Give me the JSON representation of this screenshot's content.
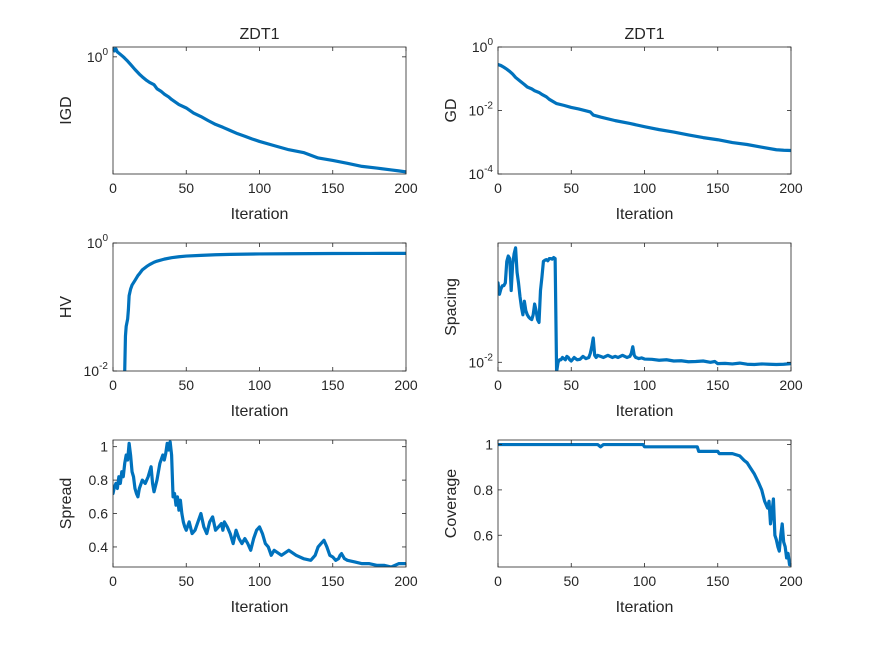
{
  "figure": {
    "background": "#ffffff",
    "line_color": "#0072BD",
    "axis_color": "#262626"
  },
  "chart_data": [
    {
      "id": "igd",
      "type": "line",
      "title": "ZDT1",
      "xlabel": "Iteration",
      "ylabel": "IGD",
      "yscale": "log",
      "xlim": [
        0,
        200
      ],
      "ylim": [
        0.012,
        1.45
      ],
      "xticks": [
        0,
        50,
        100,
        150,
        200
      ],
      "xtick_labels": [
        "0",
        "50",
        "100",
        "150",
        "200"
      ],
      "yticks": [
        {
          "value": 1,
          "base": "10",
          "exp": "0"
        }
      ],
      "series": [
        {
          "name": "IGD",
          "x": [
            0,
            1,
            2,
            3,
            4,
            5,
            6,
            7,
            8,
            10,
            12,
            15,
            18,
            20,
            23,
            25,
            28,
            30,
            33,
            35,
            38,
            40,
            45,
            50,
            55,
            60,
            65,
            70,
            75,
            80,
            85,
            90,
            95,
            100,
            110,
            120,
            130,
            140,
            150,
            160,
            170,
            180,
            190,
            195,
            200
          ],
          "y": [
            1.4,
            1.25,
            1.35,
            1.2,
            1.15,
            1.1,
            1.05,
            1.0,
            0.95,
            0.85,
            0.75,
            0.62,
            0.52,
            0.47,
            0.41,
            0.38,
            0.35,
            0.3,
            0.27,
            0.245,
            0.22,
            0.2,
            0.165,
            0.145,
            0.12,
            0.105,
            0.09,
            0.078,
            0.07,
            0.062,
            0.055,
            0.05,
            0.045,
            0.041,
            0.035,
            0.03,
            0.027,
            0.022,
            0.02,
            0.018,
            0.016,
            0.015,
            0.014,
            0.0135,
            0.013
          ]
        }
      ]
    },
    {
      "id": "gd",
      "type": "line",
      "title": "ZDT1",
      "xlabel": "Iteration",
      "ylabel": "GD",
      "yscale": "log",
      "xlim": [
        0,
        200
      ],
      "ylim": [
        0.0001,
        1
      ],
      "xticks": [
        0,
        50,
        100,
        150,
        200
      ],
      "xtick_labels": [
        "0",
        "50",
        "100",
        "150",
        "200"
      ],
      "yticks": [
        {
          "value": 1,
          "base": "10",
          "exp": "0"
        },
        {
          "value": 0.01,
          "base": "10",
          "exp": "-2"
        },
        {
          "value": 0.0001,
          "base": "10",
          "exp": "-4"
        }
      ],
      "series": [
        {
          "name": "GD",
          "x": [
            0,
            2,
            4,
            6,
            8,
            10,
            12,
            15,
            18,
            20,
            23,
            25,
            28,
            30,
            33,
            35,
            40,
            45,
            50,
            55,
            60,
            63,
            65,
            70,
            80,
            90,
            100,
            110,
            120,
            130,
            140,
            150,
            160,
            170,
            180,
            190,
            195,
            200
          ],
          "y": [
            0.28,
            0.26,
            0.23,
            0.2,
            0.17,
            0.14,
            0.11,
            0.085,
            0.066,
            0.055,
            0.048,
            0.042,
            0.037,
            0.032,
            0.027,
            0.0225,
            0.0165,
            0.0145,
            0.0125,
            0.0112,
            0.0098,
            0.009,
            0.0072,
            0.0062,
            0.0048,
            0.0039,
            0.0031,
            0.0025,
            0.0021,
            0.0017,
            0.0014,
            0.0012,
            0.00098,
            0.00085,
            0.0007,
            0.00058,
            0.00056,
            0.00055
          ]
        }
      ]
    },
    {
      "id": "hv",
      "type": "line",
      "title": "",
      "xlabel": "Iteration",
      "ylabel": "HV",
      "yscale": "log",
      "xlim": [
        0,
        200
      ],
      "ylim": [
        0.01,
        1
      ],
      "xticks": [
        0,
        50,
        100,
        150,
        200
      ],
      "xtick_labels": [
        "0",
        "50",
        "100",
        "150",
        "200"
      ],
      "yticks": [
        {
          "value": 1,
          "base": "10",
          "exp": "0"
        },
        {
          "value": 0.01,
          "base": "10",
          "exp": "-2"
        }
      ],
      "series": [
        {
          "name": "HV",
          "x": [
            8,
            8.5,
            9,
            10,
            10.5,
            11,
            12,
            13,
            15,
            17,
            18,
            20,
            23,
            25,
            28,
            30,
            35,
            40,
            45,
            50,
            60,
            70,
            80,
            100,
            120,
            150,
            175,
            200
          ],
          "y": [
            0.01,
            0.035,
            0.05,
            0.065,
            0.09,
            0.15,
            0.19,
            0.22,
            0.26,
            0.31,
            0.33,
            0.38,
            0.43,
            0.46,
            0.5,
            0.52,
            0.56,
            0.59,
            0.61,
            0.625,
            0.64,
            0.655,
            0.665,
            0.675,
            0.68,
            0.685,
            0.687,
            0.689
          ]
        }
      ]
    },
    {
      "id": "spacing",
      "type": "line",
      "title": "",
      "xlabel": "Iteration",
      "ylabel": "Spacing",
      "yscale": "log",
      "xlim": [
        0,
        200
      ],
      "ylim": [
        0.0072,
        0.9
      ],
      "xticks": [
        0,
        50,
        100,
        150,
        200
      ],
      "xtick_labels": [
        "0",
        "50",
        "100",
        "150",
        "200"
      ],
      "yticks": [
        {
          "value": 0.01,
          "base": "10",
          "exp": "-2"
        }
      ],
      "series": [
        {
          "name": "Spacing",
          "x": [
            0,
            1,
            2,
            3,
            4,
            5,
            6,
            7,
            8,
            9,
            10,
            11,
            12,
            13,
            14,
            15,
            16,
            17,
            18,
            19,
            20,
            21,
            22,
            23,
            24,
            25,
            26,
            27,
            28,
            29,
            30,
            31,
            32,
            33,
            34,
            35,
            36,
            37,
            38,
            39,
            40,
            41,
            42,
            43,
            44,
            45,
            46,
            47,
            48,
            49,
            50,
            52,
            54,
            56,
            58,
            60,
            62,
            63,
            64,
            65,
            66,
            67,
            68,
            70,
            72,
            75,
            78,
            80,
            82,
            85,
            88,
            90,
            91,
            92,
            93,
            94,
            95,
            96,
            98,
            100,
            105,
            110,
            115,
            120,
            125,
            130,
            135,
            140,
            145,
            148,
            150,
            155,
            160,
            165,
            170,
            175,
            180,
            185,
            190,
            195,
            200
          ],
          "y": [
            0.2,
            0.13,
            0.16,
            0.18,
            0.18,
            0.2,
            0.45,
            0.55,
            0.5,
            0.15,
            0.4,
            0.6,
            0.75,
            0.3,
            0.2,
            0.12,
            0.08,
            0.06,
            0.1,
            0.07,
            0.06,
            0.055,
            0.052,
            0.05,
            0.06,
            0.09,
            0.07,
            0.05,
            0.045,
            0.15,
            0.25,
            0.45,
            0.47,
            0.48,
            0.46,
            0.5,
            0.5,
            0.49,
            0.52,
            0.5,
            0.007,
            0.01,
            0.011,
            0.011,
            0.012,
            0.0115,
            0.011,
            0.0125,
            0.012,
            0.011,
            0.0105,
            0.012,
            0.011,
            0.0112,
            0.0125,
            0.0115,
            0.012,
            0.014,
            0.018,
            0.025,
            0.013,
            0.012,
            0.013,
            0.0125,
            0.012,
            0.013,
            0.012,
            0.0125,
            0.012,
            0.013,
            0.012,
            0.0125,
            0.014,
            0.018,
            0.013,
            0.012,
            0.0118,
            0.0115,
            0.0118,
            0.0113,
            0.0112,
            0.0108,
            0.011,
            0.0105,
            0.0106,
            0.0102,
            0.0103,
            0.0105,
            0.01,
            0.0103,
            0.0095,
            0.0096,
            0.0094,
            0.0097,
            0.0093,
            0.0092,
            0.0094,
            0.0093,
            0.0092,
            0.0093,
            0.0095
          ]
        }
      ]
    },
    {
      "id": "spread",
      "type": "line",
      "title": "",
      "xlabel": "Iteration",
      "ylabel": "Spread",
      "yscale": "linear",
      "xlim": [
        0,
        200
      ],
      "ylim": [
        0.28,
        1.04
      ],
      "xticks": [
        0,
        50,
        100,
        150,
        200
      ],
      "xtick_labels": [
        "0",
        "50",
        "100",
        "150",
        "200"
      ],
      "yticks": [
        {
          "value": 0.4,
          "label": "0.4"
        },
        {
          "value": 0.6,
          "label": "0.6"
        },
        {
          "value": 0.8,
          "label": "0.8"
        },
        {
          "value": 1,
          "label": "1"
        }
      ],
      "series": [
        {
          "name": "Spread",
          "x": [
            0,
            1,
            2,
            3,
            4,
            5,
            6,
            7,
            8,
            9,
            10,
            11,
            12,
            13,
            14,
            15,
            16,
            17,
            18,
            20,
            22,
            24,
            25,
            26,
            27,
            28,
            30,
            32,
            34,
            35,
            36,
            37,
            38,
            39,
            40,
            41,
            42,
            43,
            44,
            45,
            46,
            47,
            48,
            49,
            50,
            52,
            54,
            56,
            58,
            60,
            62,
            64,
            66,
            68,
            70,
            72,
            74,
            75,
            76,
            78,
            80,
            82,
            84,
            86,
            88,
            90,
            92,
            94,
            96,
            98,
            100,
            102,
            104,
            106,
            108,
            110,
            115,
            120,
            125,
            130,
            135,
            138,
            140,
            142,
            144,
            146,
            148,
            150,
            152,
            154,
            155,
            156,
            158,
            160,
            165,
            170,
            175,
            180,
            185,
            190,
            195,
            200
          ],
          "y": [
            0.72,
            0.76,
            0.78,
            0.75,
            0.82,
            0.78,
            0.85,
            0.82,
            0.9,
            0.95,
            0.92,
            1.02,
            0.95,
            0.85,
            0.82,
            0.75,
            0.72,
            0.7,
            0.75,
            0.8,
            0.78,
            0.82,
            0.85,
            0.88,
            0.78,
            0.73,
            0.8,
            0.9,
            0.95,
            0.92,
            0.96,
            1.02,
            0.98,
            1.03,
            0.95,
            0.7,
            0.72,
            0.65,
            0.7,
            0.62,
            0.68,
            0.6,
            0.55,
            0.52,
            0.5,
            0.55,
            0.48,
            0.5,
            0.55,
            0.6,
            0.52,
            0.48,
            0.55,
            0.58,
            0.5,
            0.52,
            0.54,
            0.5,
            0.55,
            0.52,
            0.48,
            0.42,
            0.5,
            0.45,
            0.42,
            0.45,
            0.42,
            0.38,
            0.45,
            0.5,
            0.52,
            0.48,
            0.42,
            0.4,
            0.35,
            0.38,
            0.35,
            0.38,
            0.35,
            0.33,
            0.32,
            0.35,
            0.4,
            0.42,
            0.44,
            0.4,
            0.35,
            0.34,
            0.32,
            0.33,
            0.35,
            0.36,
            0.33,
            0.32,
            0.31,
            0.3,
            0.3,
            0.29,
            0.29,
            0.28,
            0.3,
            0.3
          ]
        }
      ]
    },
    {
      "id": "coverage",
      "type": "line",
      "title": "",
      "xlabel": "Iteration",
      "ylabel": "Coverage",
      "yscale": "linear",
      "xlim": [
        0,
        200
      ],
      "ylim": [
        0.46,
        1.02
      ],
      "xticks": [
        0,
        50,
        100,
        150,
        200
      ],
      "xtick_labels": [
        "0",
        "50",
        "100",
        "150",
        "200"
      ],
      "yticks": [
        {
          "value": 0.6,
          "label": "0.6"
        },
        {
          "value": 0.8,
          "label": "0.8"
        },
        {
          "value": 1,
          "label": "1"
        }
      ],
      "series": [
        {
          "name": "Coverage",
          "x": [
            0,
            20,
            40,
            60,
            68,
            70,
            72,
            80,
            90,
            99,
            100,
            110,
            120,
            130,
            136,
            137,
            140,
            150,
            151,
            160,
            165,
            168,
            170,
            172,
            175,
            178,
            180,
            182,
            184,
            185,
            186,
            187,
            188,
            189,
            190,
            191,
            192,
            193,
            194,
            195,
            196,
            197,
            198,
            199,
            200
          ],
          "y": [
            1,
            1,
            1,
            1,
            1,
            0.99,
            1,
            1,
            1,
            1,
            0.99,
            0.99,
            0.99,
            0.99,
            0.99,
            0.97,
            0.97,
            0.97,
            0.96,
            0.96,
            0.95,
            0.93,
            0.92,
            0.9,
            0.87,
            0.83,
            0.8,
            0.75,
            0.72,
            0.75,
            0.65,
            0.7,
            0.76,
            0.6,
            0.58,
            0.55,
            0.53,
            0.6,
            0.65,
            0.57,
            0.55,
            0.5,
            0.52,
            0.47,
            0.47
          ]
        }
      ]
    }
  ]
}
